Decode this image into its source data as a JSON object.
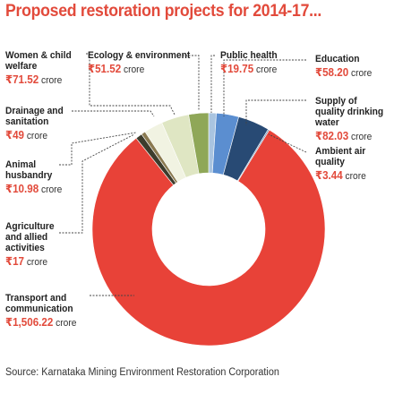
{
  "title": "Proposed restoration projects for 2014-17...",
  "source": "Source: Karnataka Mining Environment Restoration Corporation",
  "currency_unit": "crore",
  "colors": {
    "title": "#e24a3b",
    "amount": "#e24a3b",
    "leader": "#444444",
    "hole": "#ffffff"
  },
  "chart_data": {
    "type": "pie",
    "style": "donut",
    "start_angle_deg": 0,
    "direction": "clockwise",
    "slices": [
      {
        "label": "Public health",
        "value": 19.75,
        "display": "₹19.75",
        "color": "#a9c4e0"
      },
      {
        "label": "Education",
        "value": 58.2,
        "display": "₹58.20",
        "color": "#5b8ed0"
      },
      {
        "label": "Supply of quality drinking water",
        "value": 82.03,
        "display": "₹82.03",
        "color": "#284a74"
      },
      {
        "label": "Ambient air quality",
        "value": 3.44,
        "display": "₹3.44",
        "color": "#6a90bb"
      },
      {
        "label": "Transport and communication",
        "value": 1506.22,
        "display": "₹1,506.22",
        "color": "#e84238"
      },
      {
        "label": "Agriculture and allied activities",
        "value": 17,
        "display": "₹17",
        "color": "#3c3c2c"
      },
      {
        "label": "Animal husbandry",
        "value": 10.98,
        "display": "₹10.98",
        "color": "#8a7a50"
      },
      {
        "label": "Drainage and sanitation",
        "value": 49,
        "display": "₹49",
        "color": "#f1f3e2"
      },
      {
        "label": "Women & child welfare",
        "value": 71.52,
        "display": "₹71.52",
        "color": "#dfe6c3"
      },
      {
        "label": "Ecology & environment",
        "value": 51.52,
        "display": "₹51.52",
        "color": "#8fa758"
      }
    ]
  }
}
